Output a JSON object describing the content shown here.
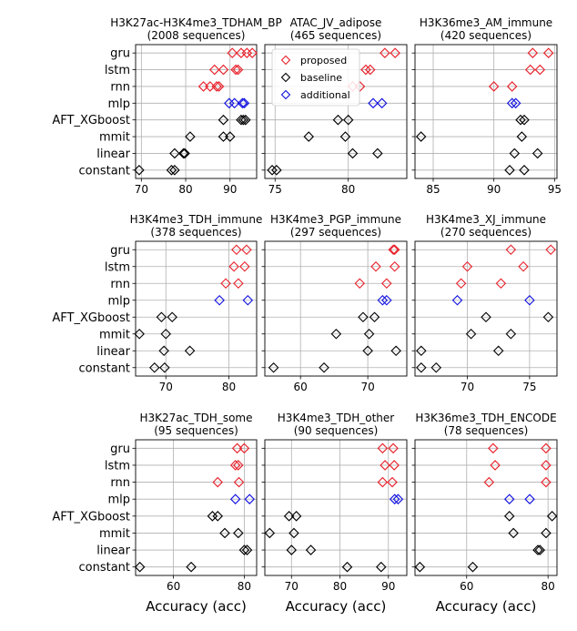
{
  "chart_data": {
    "type": "scatter",
    "xlabel": "Accuracy (acc)",
    "categories": [
      "gru",
      "lstm",
      "rnn",
      "mlp",
      "AFT_XGboost",
      "mmit",
      "linear",
      "constant"
    ],
    "legend": {
      "placement": "top-left of second panel",
      "entries": [
        {
          "name": "proposed",
          "color": "#e8202a"
        },
        {
          "name": "baseline",
          "color": "#000000"
        },
        {
          "name": "additional",
          "color": "#1010e0"
        }
      ]
    },
    "panels": [
      {
        "title_line1": "H3K27ac-H3K4me3_TDHAM_BP",
        "title_line2": "(2008 sequences)",
        "xlim": [
          68.7,
          96
        ],
        "xticks": [
          70,
          80,
          90
        ],
        "points": {
          "gru": [
            [
              90.5,
              "proposed"
            ],
            [
              92.5,
              "proposed"
            ],
            [
              93.8,
              "proposed"
            ],
            [
              95,
              "proposed"
            ]
          ],
          "lstm": [
            [
              86.5,
              "proposed"
            ],
            [
              88.5,
              "proposed"
            ],
            [
              91.3,
              "proposed"
            ],
            [
              91.8,
              "proposed"
            ]
          ],
          "rnn": [
            [
              84,
              "proposed"
            ],
            [
              85.5,
              "proposed"
            ],
            [
              87,
              "proposed"
            ],
            [
              87.5,
              "proposed"
            ]
          ],
          "mlp": [
            [
              89.8,
              "additional"
            ],
            [
              91,
              "additional"
            ],
            [
              92.8,
              "additional"
            ],
            [
              93.2,
              "additional"
            ]
          ],
          "AFT_XGboost": [
            [
              88.5,
              "baseline"
            ],
            [
              92.5,
              "baseline"
            ],
            [
              93,
              "baseline"
            ],
            [
              93.5,
              "baseline"
            ]
          ],
          "mmit": [
            [
              81,
              "baseline"
            ],
            [
              88.5,
              "baseline"
            ],
            [
              90,
              "baseline"
            ]
          ],
          "linear": [
            [
              77.5,
              "baseline"
            ],
            [
              79.5,
              "baseline"
            ],
            [
              79.8,
              "baseline"
            ]
          ],
          "constant": [
            [
              69.5,
              "baseline"
            ],
            [
              76.8,
              "baseline"
            ],
            [
              77.5,
              "baseline"
            ]
          ]
        }
      },
      {
        "title_line1": "ATAC_JV_adipose",
        "title_line2": "(465 sequences)",
        "xlim": [
          74.3,
          84
        ],
        "xticks": [
          75,
          80
        ],
        "points": {
          "gru": [
            [
              82.5,
              "proposed"
            ],
            [
              83.2,
              "proposed"
            ]
          ],
          "lstm": [
            [
              81.2,
              "proposed"
            ],
            [
              81.5,
              "proposed"
            ]
          ],
          "rnn": [
            [
              80.3,
              "proposed"
            ],
            [
              80.8,
              "proposed"
            ]
          ],
          "mlp": [
            [
              81.7,
              "additional"
            ],
            [
              82.3,
              "additional"
            ]
          ],
          "AFT_XGboost": [
            [
              79.3,
              "baseline"
            ],
            [
              80,
              "baseline"
            ]
          ],
          "mmit": [
            [
              77.3,
              "baseline"
            ],
            [
              79.8,
              "baseline"
            ]
          ],
          "linear": [
            [
              80.3,
              "baseline"
            ],
            [
              82,
              "baseline"
            ]
          ],
          "constant": [
            [
              74.8,
              "baseline"
            ],
            [
              75.1,
              "baseline"
            ]
          ]
        }
      },
      {
        "title_line1": "H3K36me3_AM_immune",
        "title_line2": "(420 sequences)",
        "xlim": [
          83.5,
          95.2
        ],
        "xticks": [
          85,
          90,
          95
        ],
        "points": {
          "gru": [
            [
              93.2,
              "proposed"
            ],
            [
              94.5,
              "proposed"
            ]
          ],
          "lstm": [
            [
              93,
              "proposed"
            ],
            [
              93.8,
              "proposed"
            ]
          ],
          "rnn": [
            [
              90,
              "proposed"
            ],
            [
              91.5,
              "proposed"
            ]
          ],
          "mlp": [
            [
              91.5,
              "additional"
            ],
            [
              91.8,
              "additional"
            ]
          ],
          "AFT_XGboost": [
            [
              92.2,
              "baseline"
            ],
            [
              92.5,
              "baseline"
            ]
          ],
          "mmit": [
            [
              84,
              "baseline"
            ],
            [
              92.3,
              "baseline"
            ]
          ],
          "linear": [
            [
              91.7,
              "baseline"
            ],
            [
              93.6,
              "baseline"
            ]
          ],
          "constant": [
            [
              91.3,
              "baseline"
            ],
            [
              92.5,
              "baseline"
            ]
          ]
        }
      },
      {
        "title_line1": "H3K4me3_TDH_immune",
        "title_line2": "(378 sequences)",
        "xlim": [
          65.2,
          84.4
        ],
        "xticks": [
          70,
          80
        ],
        "points": {
          "gru": [
            [
              81.2,
              "proposed"
            ],
            [
              82.8,
              "proposed"
            ]
          ],
          "lstm": [
            [
              80.8,
              "proposed"
            ],
            [
              82.5,
              "proposed"
            ]
          ],
          "rnn": [
            [
              79.5,
              "proposed"
            ],
            [
              81.5,
              "proposed"
            ]
          ],
          "mlp": [
            [
              78.5,
              "additional"
            ],
            [
              83,
              "additional"
            ]
          ],
          "AFT_XGboost": [
            [
              69.3,
              "baseline"
            ],
            [
              71,
              "baseline"
            ]
          ],
          "mmit": [
            [
              65.8,
              "baseline"
            ],
            [
              70,
              "baseline"
            ]
          ],
          "linear": [
            [
              69.7,
              "baseline"
            ],
            [
              73.8,
              "baseline"
            ]
          ],
          "constant": [
            [
              68.2,
              "baseline"
            ],
            [
              69.8,
              "baseline"
            ]
          ]
        }
      },
      {
        "title_line1": "H3K4me3_PGP_immune",
        "title_line2": "(297 sequences)",
        "xlim": [
          54.7,
          75.8
        ],
        "xticks": [
          60,
          70
        ],
        "points": {
          "gru": [
            [
              73.8,
              "proposed"
            ],
            [
              74,
              "proposed"
            ]
          ],
          "lstm": [
            [
              71.2,
              "proposed"
            ],
            [
              74,
              "proposed"
            ]
          ],
          "rnn": [
            [
              68.8,
              "proposed"
            ],
            [
              72.8,
              "proposed"
            ]
          ],
          "mlp": [
            [
              72.2,
              "additional"
            ],
            [
              72.8,
              "additional"
            ]
          ],
          "AFT_XGboost": [
            [
              69.3,
              "baseline"
            ],
            [
              71,
              "baseline"
            ]
          ],
          "mmit": [
            [
              65.3,
              "baseline"
            ],
            [
              70.2,
              "baseline"
            ]
          ],
          "linear": [
            [
              70,
              "baseline"
            ],
            [
              74.2,
              "baseline"
            ]
          ],
          "constant": [
            [
              56,
              "baseline"
            ],
            [
              63.5,
              "baseline"
            ]
          ]
        }
      },
      {
        "title_line1": "H3K4me3_XJ_immune",
        "title_line2": "(270 sequences)",
        "xlim": [
          65.8,
          77.2
        ],
        "xticks": [
          70,
          75
        ],
        "points": {
          "gru": [
            [
              73.5,
              "proposed"
            ],
            [
              76.7,
              "proposed"
            ]
          ],
          "lstm": [
            [
              70,
              "proposed"
            ],
            [
              74.5,
              "proposed"
            ]
          ],
          "rnn": [
            [
              69.5,
              "proposed"
            ],
            [
              72.7,
              "proposed"
            ]
          ],
          "mlp": [
            [
              69.2,
              "additional"
            ],
            [
              75,
              "additional"
            ]
          ],
          "AFT_XGboost": [
            [
              71.5,
              "baseline"
            ],
            [
              76.5,
              "baseline"
            ]
          ],
          "mmit": [
            [
              70.3,
              "baseline"
            ],
            [
              73.5,
              "baseline"
            ]
          ],
          "linear": [
            [
              66.3,
              "baseline"
            ],
            [
              72.5,
              "baseline"
            ]
          ],
          "constant": [
            [
              66.3,
              "baseline"
            ],
            [
              67.5,
              "baseline"
            ]
          ]
        }
      },
      {
        "title_line1": "H3K27ac_TDH_some",
        "title_line2": "(95 sequences)",
        "xlim": [
          49.3,
          83.5
        ],
        "xticks": [
          60,
          80
        ],
        "points": {
          "gru": [
            [
              78,
              "proposed"
            ],
            [
              80,
              "proposed"
            ]
          ],
          "lstm": [
            [
              77.5,
              "proposed"
            ],
            [
              78.3,
              "proposed"
            ]
          ],
          "rnn": [
            [
              72.5,
              "proposed"
            ],
            [
              78.5,
              "proposed"
            ]
          ],
          "mlp": [
            [
              77.5,
              "additional"
            ],
            [
              81.5,
              "additional"
            ]
          ],
          "AFT_XGboost": [
            [
              71,
              "baseline"
            ],
            [
              72.5,
              "baseline"
            ]
          ],
          "mmit": [
            [
              74.5,
              "baseline"
            ],
            [
              78.3,
              "baseline"
            ]
          ],
          "linear": [
            [
              80,
              "baseline"
            ],
            [
              80.8,
              "baseline"
            ]
          ],
          "constant": [
            [
              50.5,
              "baseline"
            ],
            [
              65,
              "baseline"
            ]
          ]
        }
      },
      {
        "title_line1": "H3K4me3_TDH_other",
        "title_line2": "(90 sequences)",
        "xlim": [
          64.5,
          93.8
        ],
        "xticks": [
          70,
          80,
          90
        ],
        "points": {
          "gru": [
            [
              88.8,
              "proposed"
            ],
            [
              91,
              "proposed"
            ]
          ],
          "lstm": [
            [
              89.3,
              "proposed"
            ],
            [
              91.2,
              "proposed"
            ]
          ],
          "rnn": [
            [
              88.8,
              "proposed"
            ],
            [
              90.8,
              "proposed"
            ]
          ],
          "mlp": [
            [
              91.3,
              "additional"
            ],
            [
              92,
              "additional"
            ]
          ],
          "AFT_XGboost": [
            [
              69.5,
              "baseline"
            ],
            [
              71,
              "baseline"
            ]
          ],
          "mmit": [
            [
              65.5,
              "baseline"
            ],
            [
              70.5,
              "baseline"
            ]
          ],
          "linear": [
            [
              70,
              "baseline"
            ],
            [
              74,
              "baseline"
            ]
          ],
          "constant": [
            [
              81.5,
              "baseline"
            ],
            [
              88.5,
              "baseline"
            ]
          ]
        }
      },
      {
        "title_line1": "H3K36me3_TDH_ENCODE",
        "title_line2": "(78 sequences)",
        "xlim": [
          47.3,
          82.2
        ],
        "xticks": [
          60,
          80
        ],
        "points": {
          "gru": [
            [
              66.5,
              "proposed"
            ],
            [
              79.5,
              "proposed"
            ]
          ],
          "lstm": [
            [
              67,
              "proposed"
            ],
            [
              79.5,
              "proposed"
            ]
          ],
          "rnn": [
            [
              65.5,
              "proposed"
            ],
            [
              79.5,
              "proposed"
            ]
          ],
          "mlp": [
            [
              70.5,
              "additional"
            ],
            [
              75.5,
              "additional"
            ]
          ],
          "AFT_XGboost": [
            [
              70.5,
              "baseline"
            ],
            [
              81,
              "baseline"
            ]
          ],
          "mmit": [
            [
              71.5,
              "baseline"
            ],
            [
              79.5,
              "baseline"
            ]
          ],
          "linear": [
            [
              77.5,
              "baseline"
            ],
            [
              78,
              "baseline"
            ]
          ],
          "constant": [
            [
              48.5,
              "baseline"
            ],
            [
              61.5,
              "baseline"
            ]
          ]
        }
      }
    ]
  }
}
